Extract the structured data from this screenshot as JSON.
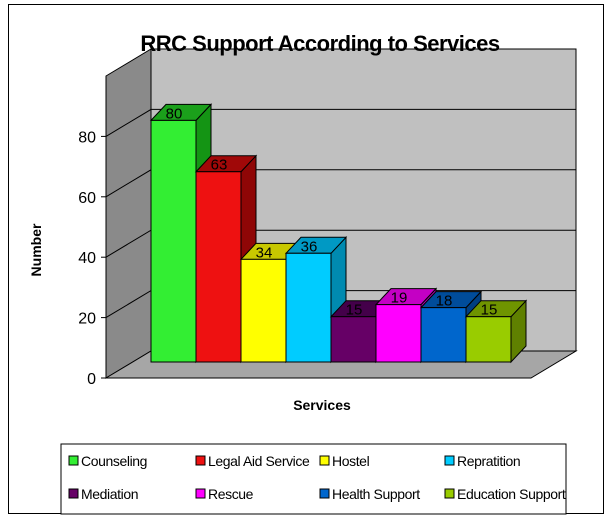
{
  "chart_data": {
    "type": "bar",
    "title": "RRC Support According to Services",
    "xlabel": "Services",
    "ylabel": "Number",
    "ylim": [
      0,
      90
    ],
    "yticks": [
      0,
      20,
      40,
      60,
      80
    ],
    "grid": true,
    "legend_position": "bottom",
    "categories": [
      "Counseling",
      "Legal Aid Service",
      "Hostel",
      "Repratition",
      "Mediation",
      "Rescue",
      "Health Support",
      "Education Support"
    ],
    "values": [
      80,
      63,
      34,
      36,
      15,
      19,
      18,
      15
    ],
    "data_labels": [
      "80",
      "63",
      "34",
      "36",
      "15",
      "19",
      "18",
      "15"
    ],
    "tick_labels": [
      "0",
      "20",
      "40",
      "60",
      "80"
    ],
    "colors": [
      "#33ee33",
      "#ee1111",
      "#ffff00",
      "#00ccff",
      "#660066",
      "#ff00ff",
      "#0066cc",
      "#99cc00"
    ],
    "top_colors": [
      "#1ba01b",
      "#a00808",
      "#c8c800",
      "#0099c4",
      "#44004a",
      "#c400c4",
      "#004c9a",
      "#6f9400"
    ],
    "side_colors": [
      "#149414",
      "#8f0606",
      "#b7b700",
      "#008ab0",
      "#3a003e",
      "#b000b0",
      "#003f82",
      "#5f8000"
    ],
    "wall_color": "#c0c0c0",
    "floor_color": "#a6a6a6"
  }
}
